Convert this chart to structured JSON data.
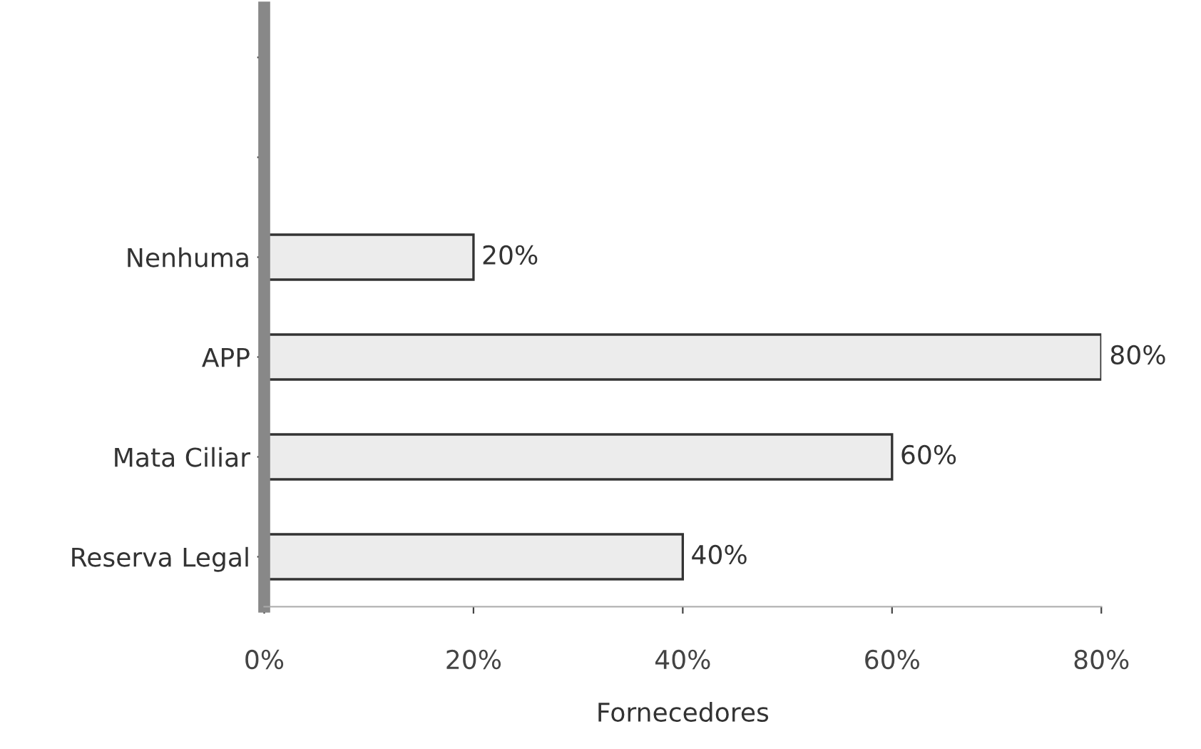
{
  "chart_data": {
    "type": "bar",
    "orientation": "horizontal",
    "xlabel": "Fornecedores",
    "categories": [
      null,
      null,
      "Nenhuma",
      "APP",
      "Mata Ciliar",
      "Reserva Legal"
    ],
    "values": [
      null,
      null,
      20,
      80,
      60,
      40
    ],
    "value_labels": [
      null,
      null,
      "20%",
      "80%",
      "60%",
      "40%"
    ],
    "color": "#ececec",
    "xlim": [
      0,
      80
    ],
    "xticks": [
      {
        "value": 0,
        "label": "0%"
      },
      {
        "value": 20,
        "label": "20%"
      },
      {
        "value": 40,
        "label": "40%"
      },
      {
        "value": 60,
        "label": "60%"
      },
      {
        "value": 80,
        "label": "80%"
      }
    ],
    "grid": false,
    "legend": false
  }
}
